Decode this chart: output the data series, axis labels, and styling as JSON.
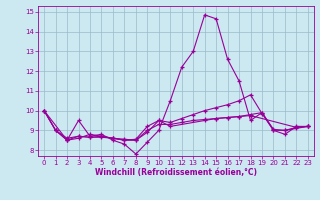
{
  "title": "",
  "xlabel": "Windchill (Refroidissement éolien,°C)",
  "background_color": "#cce8f0",
  "line_color": "#990099",
  "grid_color": "#99bbcc",
  "xlim": [
    -0.5,
    23.5
  ],
  "ylim": [
    7.7,
    15.3
  ],
  "xticks": [
    0,
    1,
    2,
    3,
    4,
    5,
    6,
    7,
    8,
    9,
    10,
    11,
    12,
    13,
    14,
    15,
    16,
    17,
    18,
    19,
    20,
    21,
    22,
    23
  ],
  "yticks": [
    8,
    9,
    10,
    11,
    12,
    13,
    14,
    15
  ],
  "curves": [
    {
      "x": [
        0,
        1,
        2,
        3,
        4,
        5,
        6,
        7,
        8,
        9,
        10,
        11,
        12,
        13,
        14,
        15,
        16,
        17,
        18,
        19,
        20,
        21,
        22,
        23
      ],
      "y": [
        10.0,
        9.0,
        8.5,
        9.5,
        8.7,
        8.8,
        8.5,
        8.3,
        7.8,
        8.4,
        9.0,
        10.5,
        12.2,
        13.0,
        14.85,
        14.65,
        12.6,
        11.5,
        9.5,
        9.9,
        9.0,
        8.8,
        9.2,
        9.2
      ]
    },
    {
      "x": [
        0,
        1,
        2,
        3,
        4,
        5,
        6,
        7,
        8,
        9,
        10,
        11,
        12,
        13,
        14,
        15,
        16,
        17,
        18,
        19,
        20,
        21,
        22,
        23
      ],
      "y": [
        10.0,
        9.0,
        8.5,
        8.6,
        8.8,
        8.7,
        8.6,
        8.55,
        8.5,
        9.0,
        9.3,
        9.3,
        9.4,
        9.5,
        9.55,
        9.6,
        9.65,
        9.7,
        9.8,
        9.9,
        9.05,
        9.0,
        9.15,
        9.2
      ]
    },
    {
      "x": [
        0,
        1,
        2,
        3,
        4,
        5,
        6,
        7,
        8,
        9,
        10,
        11,
        12,
        13,
        14,
        15,
        16,
        17,
        18,
        19,
        20,
        21,
        22,
        23
      ],
      "y": [
        10.0,
        9.0,
        8.6,
        8.7,
        8.65,
        8.65,
        8.6,
        8.5,
        8.5,
        8.9,
        9.5,
        9.4,
        9.6,
        9.8,
        10.0,
        10.15,
        10.3,
        10.5,
        10.8,
        9.85,
        9.0,
        9.0,
        9.1,
        9.2
      ]
    },
    {
      "x": [
        0,
        2,
        3,
        4,
        5,
        6,
        7,
        8,
        9,
        10,
        11,
        14,
        15,
        16,
        17,
        18,
        22,
        23
      ],
      "y": [
        10.0,
        8.5,
        8.7,
        8.65,
        8.7,
        8.6,
        8.5,
        8.55,
        9.2,
        9.5,
        9.2,
        9.5,
        9.6,
        9.65,
        9.7,
        9.75,
        9.15,
        9.2
      ]
    }
  ]
}
